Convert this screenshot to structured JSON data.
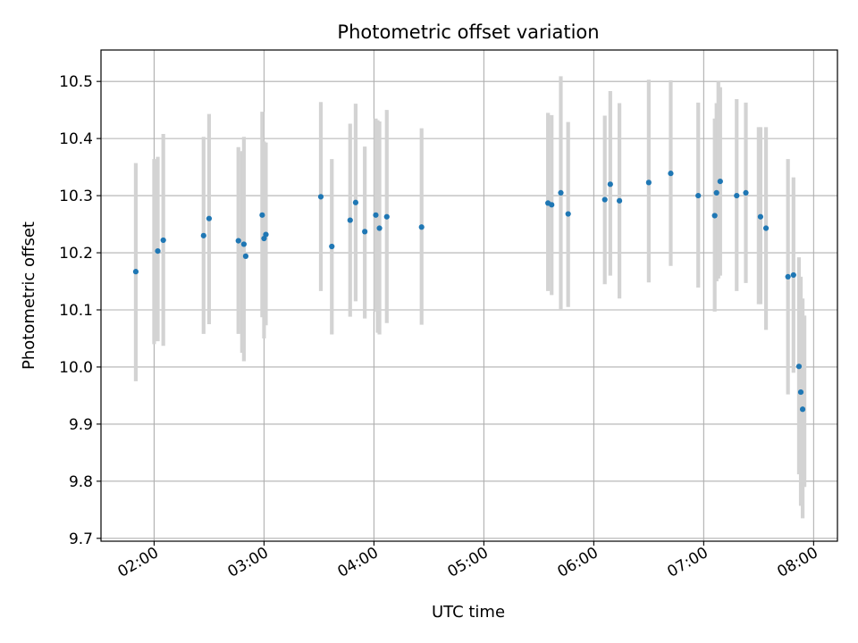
{
  "chart_data": {
    "type": "scatter",
    "title": "Photometric offset variation",
    "xlabel": "UTC time",
    "ylabel": "Photometric offset",
    "grid": true,
    "x_ticks": [
      "02:00",
      "03:00",
      "04:00",
      "05:00",
      "06:00",
      "07:00",
      "08:00"
    ],
    "x_tick_minutes": [
      120,
      180,
      240,
      300,
      360,
      420,
      480
    ],
    "xlim_minutes": [
      91,
      493
    ],
    "y_ticks": [
      "9.7",
      "9.8",
      "9.9",
      "10.0",
      "10.1",
      "10.2",
      "10.3",
      "10.4",
      "10.5"
    ],
    "y_tick_values": [
      9.7,
      9.8,
      9.9,
      10.0,
      10.1,
      10.2,
      10.3,
      10.4,
      10.5
    ],
    "ylim": [
      9.695,
      10.555
    ],
    "series": [
      {
        "x": [
          "01:50",
          "02:02",
          "02:05",
          "02:27",
          "02:30",
          "02:46",
          "02:49",
          "02:50",
          "02:59",
          "03:00",
          "03:01",
          "03:31",
          "03:37",
          "03:47",
          "03:50",
          "03:55",
          "04:01",
          "04:03",
          "04:07",
          "04:26",
          "05:35",
          "05:37",
          "05:42",
          "05:46",
          "06:06",
          "06:09",
          "06:14",
          "06:30",
          "06:42",
          "06:57",
          "07:06",
          "07:07",
          "07:09",
          "07:18",
          "07:23",
          "07:31",
          "07:34",
          "07:46",
          "07:49",
          "07:52",
          "07:53",
          "07:54"
        ],
        "y": [
          10.167,
          10.203,
          10.222,
          10.23,
          10.26,
          10.221,
          10.215,
          10.194,
          10.266,
          10.225,
          10.232,
          10.298,
          10.211,
          10.257,
          10.288,
          10.237,
          10.266,
          10.243,
          10.263,
          10.245,
          10.287,
          10.284,
          10.305,
          10.268,
          10.293,
          10.32,
          10.291,
          10.323,
          10.339,
          10.3,
          10.265,
          10.305,
          10.325,
          10.3,
          10.305,
          10.263,
          10.243,
          10.158,
          10.161,
          10.001,
          9.956,
          9.926
        ],
        "color": "#1f77b4"
      }
    ],
    "error_bars": {
      "x": [
        "01:50",
        "02:00",
        "02:02",
        "02:05",
        "02:27",
        "02:30",
        "02:46",
        "02:48",
        "02:49",
        "02:59",
        "03:00",
        "03:01",
        "03:31",
        "03:37",
        "03:47",
        "03:50",
        "03:55",
        "04:01",
        "04:02",
        "04:03",
        "04:07",
        "04:26",
        "05:35",
        "05:37",
        "05:42",
        "05:46",
        "06:06",
        "06:09",
        "06:14",
        "06:30",
        "06:42",
        "06:57",
        "07:06",
        "07:07",
        "07:08",
        "07:09",
        "07:18",
        "07:23",
        "07:30",
        "07:31",
        "07:34",
        "07:46",
        "07:49",
        "07:52",
        "07:53",
        "07:54",
        "07:55"
      ],
      "low": [
        9.975,
        10.04,
        10.045,
        10.037,
        10.058,
        10.075,
        10.058,
        10.025,
        10.01,
        10.087,
        10.05,
        10.073,
        10.133,
        10.057,
        10.088,
        10.115,
        10.085,
        10.097,
        10.06,
        10.057,
        10.077,
        10.074,
        10.133,
        10.126,
        10.1,
        10.105,
        10.145,
        10.16,
        10.12,
        10.148,
        10.177,
        10.139,
        10.097,
        10.15,
        10.155,
        10.16,
        10.133,
        10.147,
        10.11,
        10.11,
        10.065,
        9.952,
        9.99,
        9.812,
        9.757,
        9.735,
        9.79
      ],
      "high": [
        10.357,
        10.364,
        10.368,
        10.408,
        10.403,
        10.443,
        10.385,
        10.378,
        10.403,
        10.447,
        10.395,
        10.393,
        10.464,
        10.364,
        10.426,
        10.461,
        10.386,
        10.435,
        10.432,
        10.43,
        10.45,
        10.418,
        10.445,
        10.441,
        10.509,
        10.429,
        10.44,
        10.483,
        10.462,
        10.503,
        10.502,
        10.463,
        10.435,
        10.462,
        10.5,
        10.49,
        10.469,
        10.463,
        10.42,
        10.42,
        10.42,
        10.364,
        10.332,
        10.192,
        10.158,
        10.12,
        10.09
      ],
      "color": "#d3d3d3"
    }
  }
}
